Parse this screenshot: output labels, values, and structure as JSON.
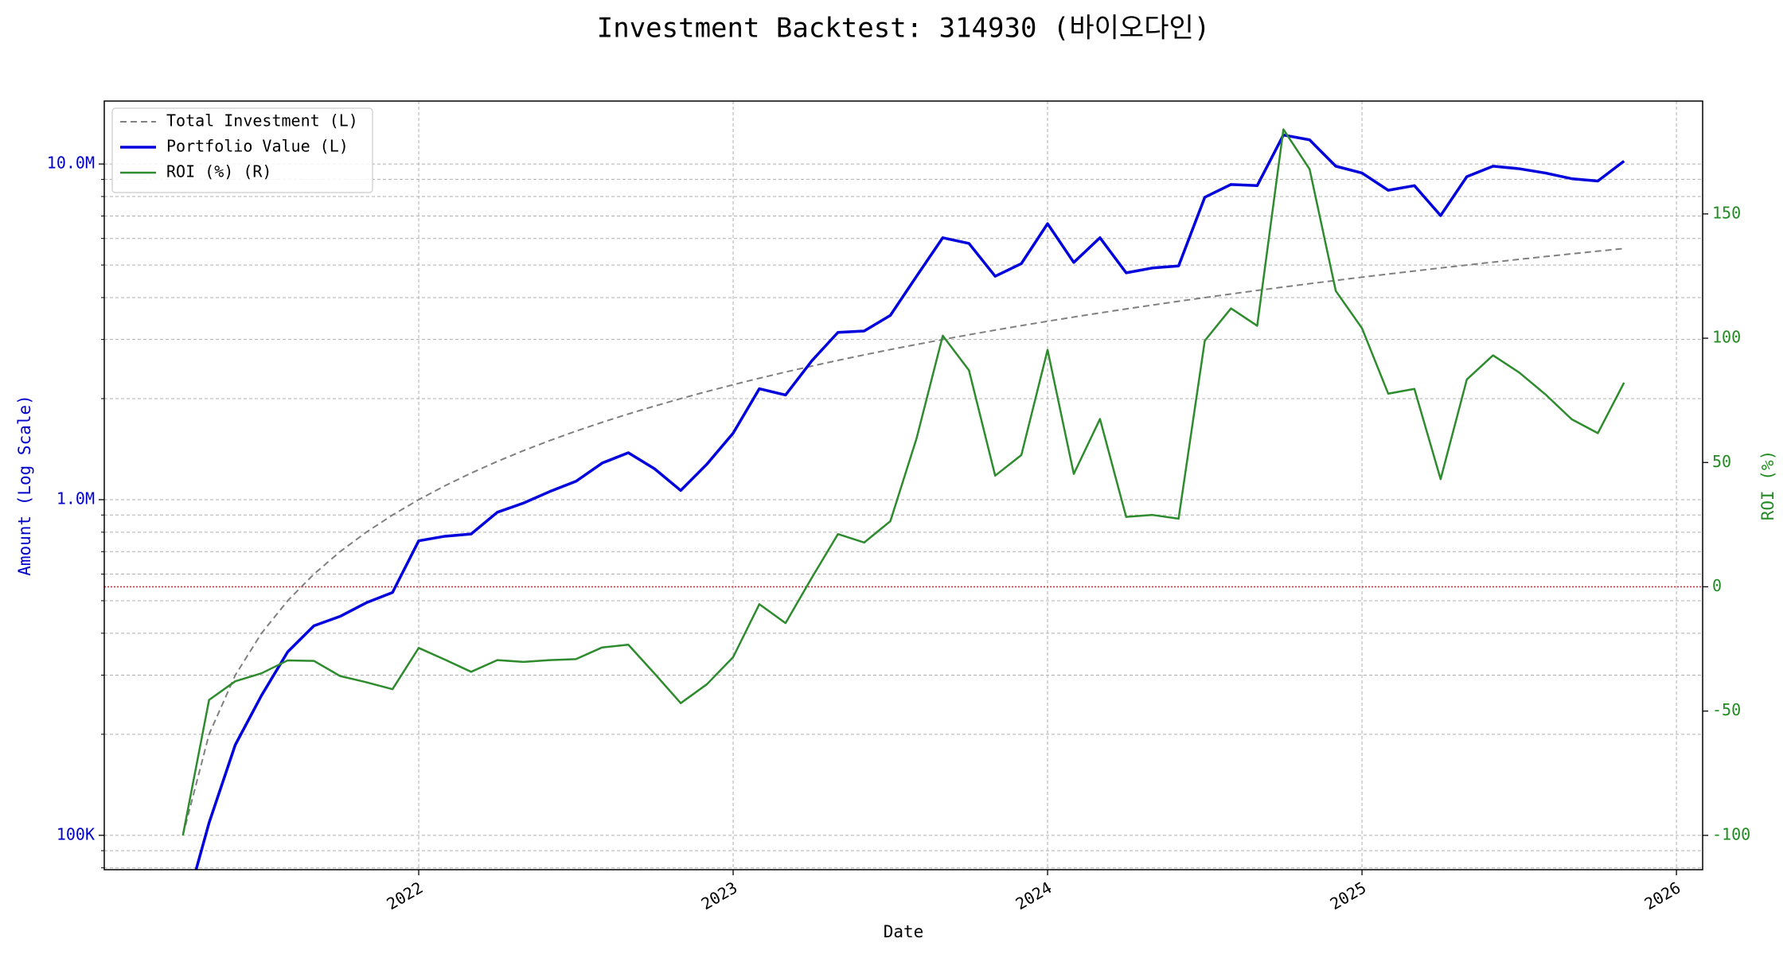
{
  "chart_data": {
    "type": "line",
    "title": "Investment Backtest: 314930 (바이오다인)",
    "xlabel": "Date",
    "ylabel": "Amount (Log Scale)",
    "y2label": "ROI (%)",
    "y_color": "#0000cd",
    "y2_color": "#228b22",
    "ylog": true,
    "grid": true,
    "legend": "upper left",
    "x": [
      "2021-04",
      "2021-05",
      "2021-06",
      "2021-07",
      "2021-08",
      "2021-09",
      "2021-10",
      "2021-11",
      "2021-12",
      "2022-01",
      "2022-02",
      "2022-03",
      "2022-04",
      "2022-05",
      "2022-06",
      "2022-07",
      "2022-08",
      "2022-09",
      "2022-10",
      "2022-11",
      "2022-12",
      "2023-01",
      "2023-02",
      "2023-03",
      "2023-04",
      "2023-05",
      "2023-06",
      "2023-07",
      "2023-08",
      "2023-09",
      "2023-10",
      "2023-11",
      "2023-12",
      "2024-01",
      "2024-02",
      "2024-03",
      "2024-04",
      "2024-05",
      "2024-06",
      "2024-07",
      "2024-08",
      "2024-09",
      "2024-10",
      "2024-11",
      "2024-12",
      "2025-01",
      "2025-02",
      "2025-03",
      "2025-04",
      "2025-05",
      "2025-06",
      "2025-07",
      "2025-08",
      "2025-09",
      "2025-10",
      "2025-11"
    ],
    "xlim": [
      "2021-01",
      "2026-02"
    ],
    "xticks": [
      {
        "value": "2022-01",
        "label": "2022"
      },
      {
        "value": "2023-01",
        "label": "2023"
      },
      {
        "value": "2024-01",
        "label": "2024"
      },
      {
        "value": "2025-01",
        "label": "2025"
      },
      {
        "value": "2026-01",
        "label": "2026"
      }
    ],
    "ylim": [
      79000,
      15400000
    ],
    "yticks": [
      {
        "value": 100000,
        "label": "100K"
      },
      {
        "value": 1000000,
        "label": "1.0M"
      },
      {
        "value": 10000000,
        "label": "10.0M"
      }
    ],
    "yminorticks": [
      80000,
      90000,
      200000,
      300000,
      400000,
      500000,
      600000,
      700000,
      800000,
      900000,
      2000000,
      3000000,
      4000000,
      5000000,
      6000000,
      7000000,
      8000000,
      9000000
    ],
    "y2lim": [
      -113.8,
      195.4
    ],
    "y2ticks": [
      -100,
      -50,
      0,
      50,
      100,
      150
    ],
    "reference_line": {
      "value": 0,
      "axis": "y2",
      "color": "#d62728"
    },
    "series": [
      {
        "name": "Total Investment (L)",
        "color": "#808080",
        "linestyle": "dashed",
        "linewidth": 2,
        "values": [
          100000,
          200000,
          300000,
          400000,
          500000,
          600000,
          700000,
          800000,
          900000,
          1000000,
          1100000,
          1200000,
          1300000,
          1400000,
          1500000,
          1600000,
          1700000,
          1800000,
          1900000,
          2000000,
          2100000,
          2200000,
          2300000,
          2400000,
          2500000,
          2600000,
          2700000,
          2800000,
          2900000,
          3000000,
          3100000,
          3200000,
          3300000,
          3400000,
          3500000,
          3600000,
          3700000,
          3800000,
          3900000,
          4000000,
          4100000,
          4200000,
          4300000,
          4400000,
          4500000,
          4600000,
          4700000,
          4800000,
          4900000,
          5000000,
          5100000,
          5200000,
          5300000,
          5400000,
          5500000,
          5600000
        ]
      },
      {
        "name": "Portfolio Value (L)",
        "color": "#0000dd",
        "linestyle": "solid",
        "linewidth": 3.5,
        "values": [
          0,
          109000,
          186000,
          261000,
          352000,
          421000,
          449000,
          493000,
          529000,
          754000,
          778000,
          790000,
          917000,
          977000,
          1057000,
          1134000,
          1285000,
          1380000,
          1236000,
          1065000,
          1276000,
          1578000,
          2140000,
          2050000,
          2590000,
          3150000,
          3180000,
          3540000,
          4630000,
          6030000,
          5800000,
          4630000,
          5050000,
          6640000,
          5090000,
          6030000,
          4740000,
          4900000,
          4970000,
          7960000,
          8690000,
          8620000,
          12200000,
          11800000,
          9850000,
          9400000,
          8350000,
          8620000,
          7020000,
          9170000,
          9850000,
          9680000,
          9400000,
          9040000,
          8900000,
          10200000
        ]
      },
      {
        "name": "ROI (%) (R)",
        "color": "#2e8b2e",
        "linestyle": "solid",
        "linewidth": 2.5,
        "axis": "y2",
        "values": [
          -100,
          -45.5,
          -38,
          -34.8,
          -29.6,
          -29.8,
          -35.9,
          -38.4,
          -41.2,
          -24.6,
          -29.3,
          -34.2,
          -29.5,
          -30.2,
          -29.5,
          -29.1,
          -24.4,
          -23.3,
          -34.9,
          -46.8,
          -39.2,
          -28.3,
          -7,
          -14.6,
          3.6,
          21.2,
          17.8,
          26.4,
          59.7,
          101,
          87.1,
          44.7,
          53,
          95.3,
          45.4,
          67.5,
          28.1,
          28.9,
          27.4,
          99,
          112,
          105,
          184,
          168,
          119,
          104,
          77.7,
          79.6,
          43.3,
          83.4,
          93.1,
          86.2,
          77.4,
          67.4,
          61.8,
          82.1
        ]
      }
    ]
  }
}
